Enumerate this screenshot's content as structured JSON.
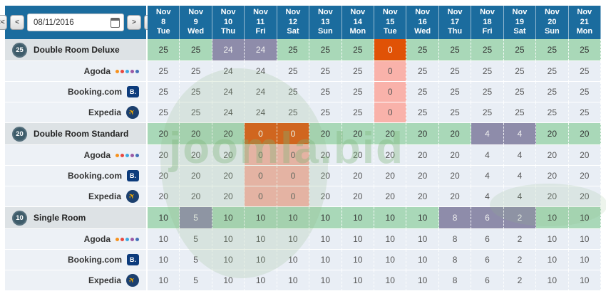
{
  "colors": {
    "header_blue": "#1b6c9e",
    "available_green": "#a9d8b8",
    "reduced_purple": "#8e8caa",
    "soldout_orange": "#e05206",
    "soldout_pink": "#f9b2aa",
    "channel_row_bg": "#e9eef5",
    "room_row_bg": "#dde2e5",
    "badge_bg": "#3e5c6a"
  },
  "toolbar": {
    "first_label": "<<",
    "prev_label": "<",
    "next_label": ">",
    "last_label": ">>",
    "date_value": "08/11/2016"
  },
  "dates": [
    {
      "month": "Nov",
      "day": "8",
      "weekday": "Tue"
    },
    {
      "month": "Nov",
      "day": "9",
      "weekday": "Wed"
    },
    {
      "month": "Nov",
      "day": "10",
      "weekday": "Thu"
    },
    {
      "month": "Nov",
      "day": "11",
      "weekday": "Fri"
    },
    {
      "month": "Nov",
      "day": "12",
      "weekday": "Sat"
    },
    {
      "month": "Nov",
      "day": "13",
      "weekday": "Sun"
    },
    {
      "month": "Nov",
      "day": "14",
      "weekday": "Mon"
    },
    {
      "month": "Nov",
      "day": "15",
      "weekday": "Tue"
    },
    {
      "month": "Nov",
      "day": "16",
      "weekday": "Wed"
    },
    {
      "month": "Nov",
      "day": "17",
      "weekday": "Thu"
    },
    {
      "month": "Nov",
      "day": "18",
      "weekday": "Fri"
    },
    {
      "month": "Nov",
      "day": "19",
      "weekday": "Sat"
    },
    {
      "month": "Nov",
      "day": "20",
      "weekday": "Sun"
    },
    {
      "month": "Nov",
      "day": "21",
      "weekday": "Mon"
    }
  ],
  "icons": {
    "agoda_dot_colors": [
      "#f6921e",
      "#e8483f",
      "#3fa9e0",
      "#9b59a5",
      "#4472b8"
    ],
    "booking_label": "B.",
    "expedia_glyph": "✈"
  },
  "sections": [
    {
      "badge": "25",
      "room_name": "Double Room Deluxe",
      "summary": {
        "values": [
          25,
          25,
          24,
          24,
          25,
          25,
          25,
          0,
          25,
          25,
          25,
          25,
          25,
          25
        ],
        "styles": [
          "green",
          "green",
          "purple",
          "purple",
          "green",
          "green",
          "green",
          "orange",
          "green",
          "green",
          "green",
          "green",
          "green",
          "green"
        ]
      },
      "channel_values": [
        25,
        25,
        24,
        24,
        25,
        25,
        25,
        0,
        25,
        25,
        25,
        25,
        25,
        25
      ],
      "channel_styles": [
        "plain",
        "plain",
        "plain",
        "plain",
        "plain",
        "plain",
        "plain",
        "pink",
        "plain",
        "plain",
        "plain",
        "plain",
        "plain",
        "plain"
      ],
      "channels": [
        {
          "name": "Agoda",
          "icon": "agoda-dots-icon"
        },
        {
          "name": "Booking.com",
          "icon": "booking-icon"
        },
        {
          "name": "Expedia",
          "icon": "expedia-icon"
        }
      ]
    },
    {
      "badge": "20",
      "room_name": "Double Room Standard",
      "summary": {
        "values": [
          20,
          20,
          20,
          0,
          0,
          20,
          20,
          20,
          20,
          20,
          4,
          4,
          20,
          20
        ],
        "styles": [
          "green",
          "green",
          "green",
          "orange",
          "orange",
          "green",
          "green",
          "green",
          "green",
          "green",
          "purple",
          "purple",
          "green",
          "green"
        ]
      },
      "channel_values": [
        20,
        20,
        20,
        0,
        0,
        20,
        20,
        20,
        20,
        20,
        4,
        4,
        20,
        20
      ],
      "channel_styles": [
        "plain",
        "plain",
        "plain",
        "pink",
        "pink",
        "plain",
        "plain",
        "plain",
        "plain",
        "plain",
        "plain",
        "plain",
        "plain",
        "plain"
      ],
      "channels": [
        {
          "name": "Agoda",
          "icon": "agoda-dots-icon"
        },
        {
          "name": "Booking.com",
          "icon": "booking-icon"
        },
        {
          "name": "Expedia",
          "icon": "expedia-icon"
        }
      ]
    },
    {
      "badge": "10",
      "room_name": "Single Room",
      "summary": {
        "values": [
          10,
          5,
          10,
          10,
          10,
          10,
          10,
          10,
          10,
          8,
          6,
          2,
          10,
          10
        ],
        "styles": [
          "green",
          "purple",
          "green",
          "green",
          "green",
          "green",
          "green",
          "green",
          "green",
          "purple",
          "purple",
          "purple",
          "green",
          "green"
        ]
      },
      "channel_values": [
        10,
        5,
        10,
        10,
        10,
        10,
        10,
        10,
        10,
        8,
        6,
        2,
        10,
        10
      ],
      "channel_styles": [
        "plain",
        "plain",
        "plain",
        "plain",
        "plain",
        "plain",
        "plain",
        "plain",
        "plain",
        "plain",
        "plain",
        "plain",
        "plain",
        "plain"
      ],
      "channels": [
        {
          "name": "Agoda",
          "icon": "agoda-dots-icon"
        },
        {
          "name": "Booking.com",
          "icon": "booking-icon"
        },
        {
          "name": "Expedia",
          "icon": "expedia-icon"
        }
      ]
    }
  ],
  "watermark": {
    "text": "joomla.bid"
  }
}
